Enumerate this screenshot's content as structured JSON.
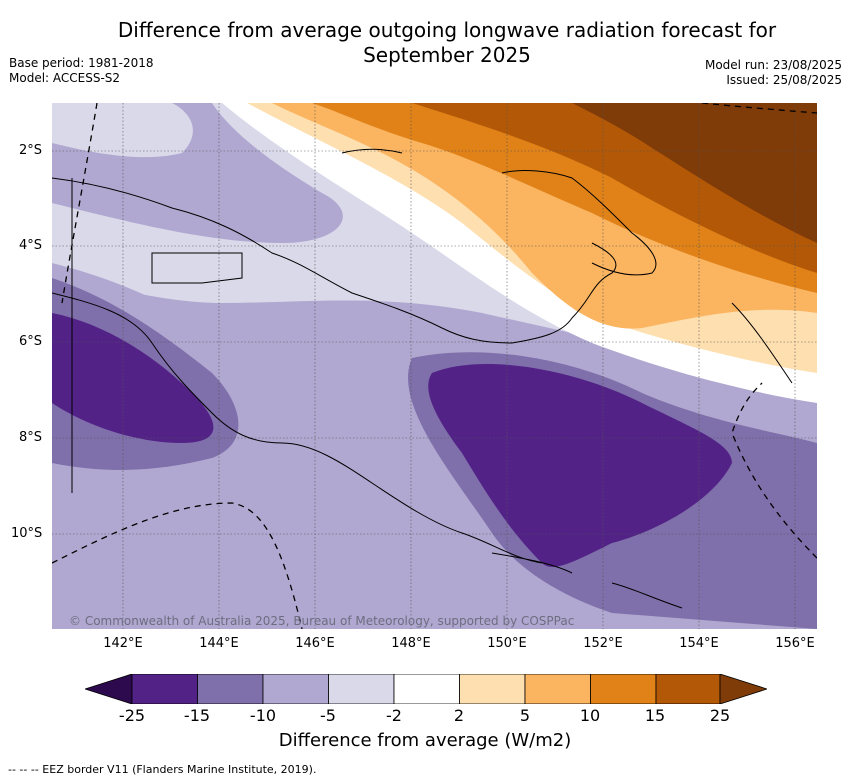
{
  "title_line1": "Difference from average outgoing longwave radiation forecast for",
  "title_line2": "September 2025",
  "base_period": "Base period: 1981-2018",
  "model": "Model: ACCESS-S2",
  "model_run": "Model run: 23/08/2025",
  "issued": "Issued: 25/08/2025",
  "y_ticks": [
    "2°S",
    "4°S",
    "6°S",
    "8°S",
    "10°S"
  ],
  "x_ticks": [
    "142°E",
    "144°E",
    "146°E",
    "148°E",
    "150°E",
    "152°E",
    "154°E",
    "156°E"
  ],
  "copyright": "© Commonwealth of Australia 2025, Bureau of Meteorology, supported by COSPPac",
  "colorbar": {
    "ticks": [
      "-25",
      "-15",
      "-10",
      "-5",
      "-2",
      "2",
      "5",
      "10",
      "15",
      "25"
    ],
    "label": "Difference from average (W/m2)",
    "colors": [
      "#2d0a4e",
      "#522287",
      "#7f6faa",
      "#b0a8d0",
      "#d9d9ea",
      "#ffffff",
      "#fedfb0",
      "#fbb460",
      "#e08218",
      "#b35806",
      "#7f3b08"
    ]
  },
  "footnote": "-- -- -- EEZ border V11 (Flanders Marine Institute, 2019)."
}
